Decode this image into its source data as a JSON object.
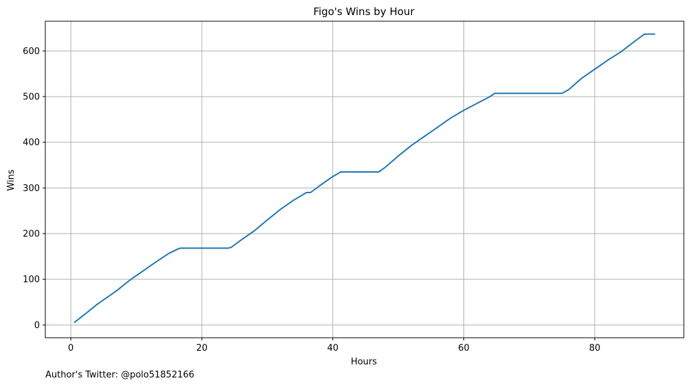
{
  "chart_data": {
    "type": "line",
    "title": "Figo's Wins by Hour",
    "xlabel": "Hours",
    "ylabel": "Wins",
    "xlim": [
      -3.9,
      93.6
    ],
    "ylim": [
      -28,
      665
    ],
    "xticks": [
      0,
      20,
      40,
      60,
      80
    ],
    "yticks": [
      0,
      100,
      200,
      300,
      400,
      500,
      600
    ],
    "grid": true,
    "line_color": "#1f77b4",
    "series": [
      {
        "name": "Wins",
        "x": [
          0.5,
          2,
          4,
          5.5,
          7,
          9,
          11,
          13,
          15,
          16.3,
          16.7,
          24,
          24.5,
          26,
          28,
          30,
          32,
          34,
          36,
          36.6,
          38,
          40,
          41.2,
          47,
          48,
          50,
          52,
          54,
          56,
          58,
          60,
          62,
          64,
          64.7,
          75,
          76,
          78,
          80,
          82,
          84,
          86,
          87.6,
          89.2
        ],
        "y": [
          5,
          22,
          45,
          60,
          75,
          98,
          118,
          138,
          157,
          166,
          168,
          168,
          170,
          186,
          206,
          230,
          253,
          273,
          290,
          290,
          305,
          325,
          335,
          335,
          345,
          370,
          393,
          413,
          433,
          453,
          470,
          485,
          500,
          507,
          507,
          515,
          540,
          560,
          580,
          598,
          620,
          637,
          637
        ]
      }
    ],
    "footnote": "Author's Twitter: @polo51852166"
  }
}
